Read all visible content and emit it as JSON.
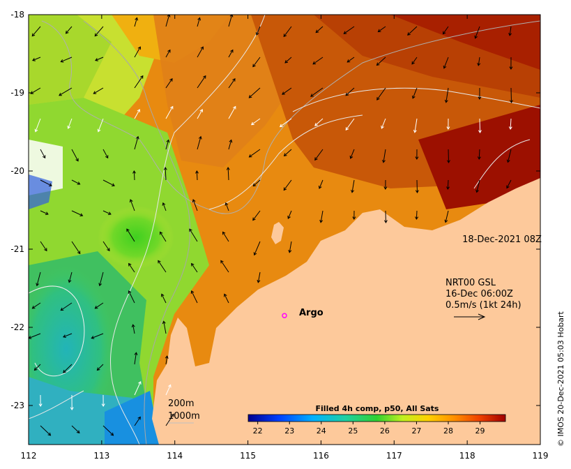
{
  "map": {
    "x_ticks": [
      "112",
      "113",
      "114",
      "115",
      "116",
      "117",
      "118",
      "119"
    ],
    "y_ticks": [
      "-18",
      "-19",
      "-20",
      "-21",
      "-22",
      "-23"
    ],
    "lon_range": [
      112,
      119
    ],
    "lat_range": [
      -23.5,
      -18
    ],
    "timestamp": "18-Dec-2021 08Z",
    "argo": {
      "label": "Argo",
      "lon": 115.5,
      "lat": -21.85,
      "color": "#ff00ff"
    },
    "legend_vector": {
      "source": "NRT00 GSL",
      "time": "16-Dec 06:00Z",
      "scale": "0.5m/s (1kt 24h)"
    },
    "contours": {
      "line1": "200m",
      "line2": "1000m"
    },
    "colorbar": {
      "title": "Filled 4h comp, p50, All Sats",
      "ticks": [
        "22",
        "23",
        "24",
        "25",
        "26",
        "27",
        "28",
        "29"
      ],
      "range": [
        21.7,
        29.8
      ]
    },
    "credit": "© IMOS 20-Dec-2021 05:03 Hobart",
    "colors": {
      "land": "#fdc99b",
      "water_cool": "#27b6b0",
      "water_warm": "#a50d00",
      "argo": "#ff00ff"
    }
  }
}
